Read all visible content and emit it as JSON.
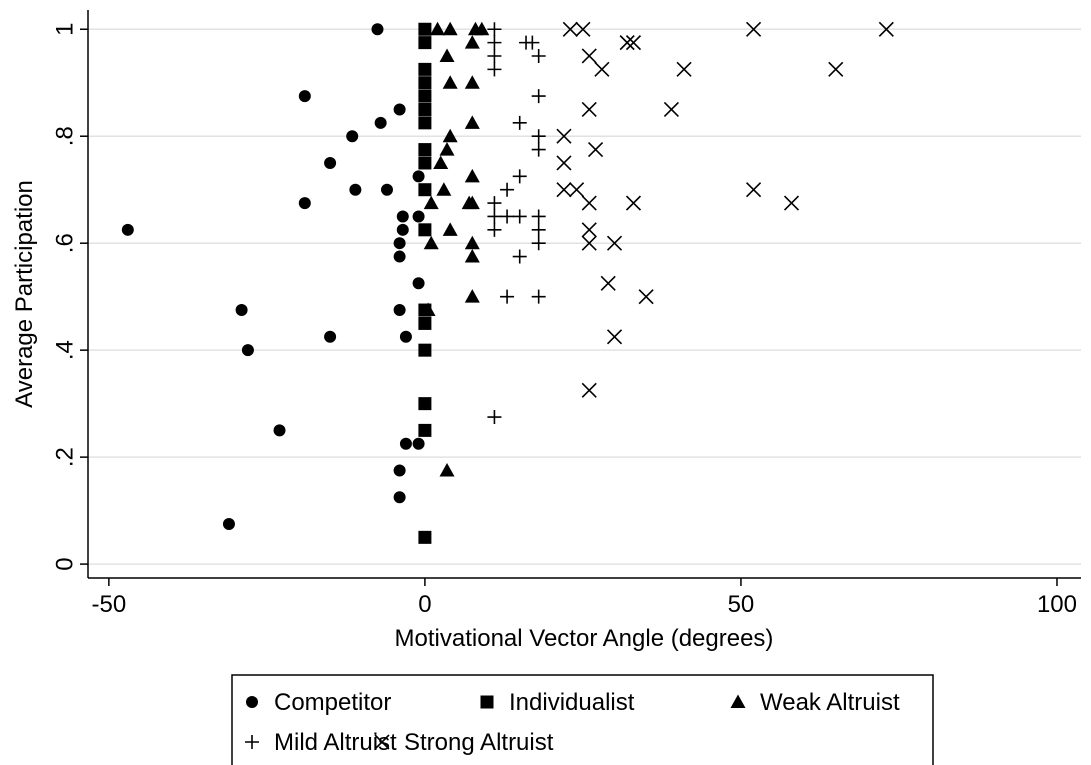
{
  "chart_data": {
    "type": "scatter",
    "x_label": "Motivational Vector Angle (degrees)",
    "y_label": "Average Participation",
    "xlim": [
      -53.3,
      103.8
    ],
    "ylim": [
      -0.026,
      1.036
    ],
    "xticks": [
      -50,
      0,
      50,
      100
    ],
    "yticks": [
      0,
      {
        "value": 0.2,
        "label": ".2"
      },
      {
        "value": 0.4,
        "label": ".4"
      },
      {
        "value": 0.6,
        "label": ".6"
      },
      {
        "value": 0.8,
        "label": ".8"
      },
      1
    ],
    "grid": true,
    "legend": "bottom",
    "series": [
      {
        "name": "Competitor",
        "color": "#000000",
        "marker": "circle",
        "x": [
          -7.5,
          -19,
          -4,
          -11.5,
          -7,
          -15,
          -11,
          -6,
          -1,
          -19,
          -47,
          -3.5,
          -3.5,
          -4,
          -4,
          -1,
          -1,
          -29,
          -4,
          -28,
          -15,
          -3,
          -23,
          -3,
          -1,
          -4,
          -4,
          -31,
          0
        ],
        "values": [
          1,
          0.875,
          0.85,
          0.8,
          0.825,
          0.75,
          0.7,
          0.7,
          0.725,
          0.675,
          0.625,
          0.65,
          0.625,
          0.6,
          0.575,
          0.65,
          0.525,
          0.475,
          0.475,
          0.4,
          0.425,
          0.425,
          0.25,
          0.225,
          0.225,
          0.175,
          0.125,
          0.075,
          0.625
        ]
      },
      {
        "name": "Individualist",
        "color": "#000000",
        "marker": "square",
        "x": [
          0,
          0,
          0,
          0,
          0,
          0,
          0,
          0,
          0,
          0,
          0,
          0,
          0,
          0,
          0,
          0,
          0
        ],
        "values": [
          1,
          0.975,
          0.925,
          0.9,
          0.875,
          0.85,
          0.825,
          0.775,
          0.75,
          0.7,
          0.625,
          0.475,
          0.45,
          0.4,
          0.3,
          0.25,
          0.05
        ]
      },
      {
        "name": "Weak Altruist",
        "color": "#000000",
        "marker": "triangle",
        "x": [
          2,
          4,
          8,
          9,
          7.5,
          3.5,
          4,
          7.5,
          7.5,
          4,
          3.5,
          2.5,
          7.5,
          3,
          1,
          7,
          7.5,
          4,
          1,
          7.5,
          7.5,
          7.5,
          0.5,
          3.5
        ],
        "values": [
          1,
          1,
          1,
          1,
          0.975,
          0.95,
          0.9,
          0.9,
          0.825,
          0.8,
          0.775,
          0.75,
          0.725,
          0.7,
          0.675,
          0.675,
          0.675,
          0.625,
          0.6,
          0.6,
          0.575,
          0.5,
          0.475,
          0.175
        ]
      },
      {
        "name": "Mild Altruist",
        "color": "#000000",
        "marker": "plus",
        "x": [
          11,
          11,
          16,
          17,
          18,
          11,
          11,
          18,
          15,
          18,
          18,
          15,
          13,
          11,
          11,
          13,
          15,
          18,
          11,
          18,
          18,
          15,
          13,
          18,
          11
        ],
        "values": [
          1,
          0.975,
          0.975,
          0.975,
          0.95,
          0.95,
          0.925,
          0.875,
          0.825,
          0.8,
          0.775,
          0.725,
          0.7,
          0.675,
          0.65,
          0.65,
          0.65,
          0.65,
          0.625,
          0.625,
          0.6,
          0.575,
          0.5,
          0.5,
          0.275
        ]
      },
      {
        "name": "Strong Altruist",
        "color": "#000000",
        "marker": "cross",
        "x": [
          23,
          25,
          52,
          73,
          32,
          33,
          26,
          28,
          41,
          65,
          26,
          39,
          22,
          27,
          22,
          22,
          24,
          52,
          26,
          33,
          58,
          26,
          26,
          30,
          29,
          35,
          30,
          26
        ],
        "values": [
          1,
          1,
          1,
          1,
          0.975,
          0.975,
          0.95,
          0.925,
          0.925,
          0.925,
          0.85,
          0.85,
          0.8,
          0.775,
          0.75,
          0.7,
          0.7,
          0.7,
          0.675,
          0.675,
          0.675,
          0.625,
          0.6,
          0.6,
          0.525,
          0.5,
          0.425,
          0.325
        ]
      }
    ]
  }
}
